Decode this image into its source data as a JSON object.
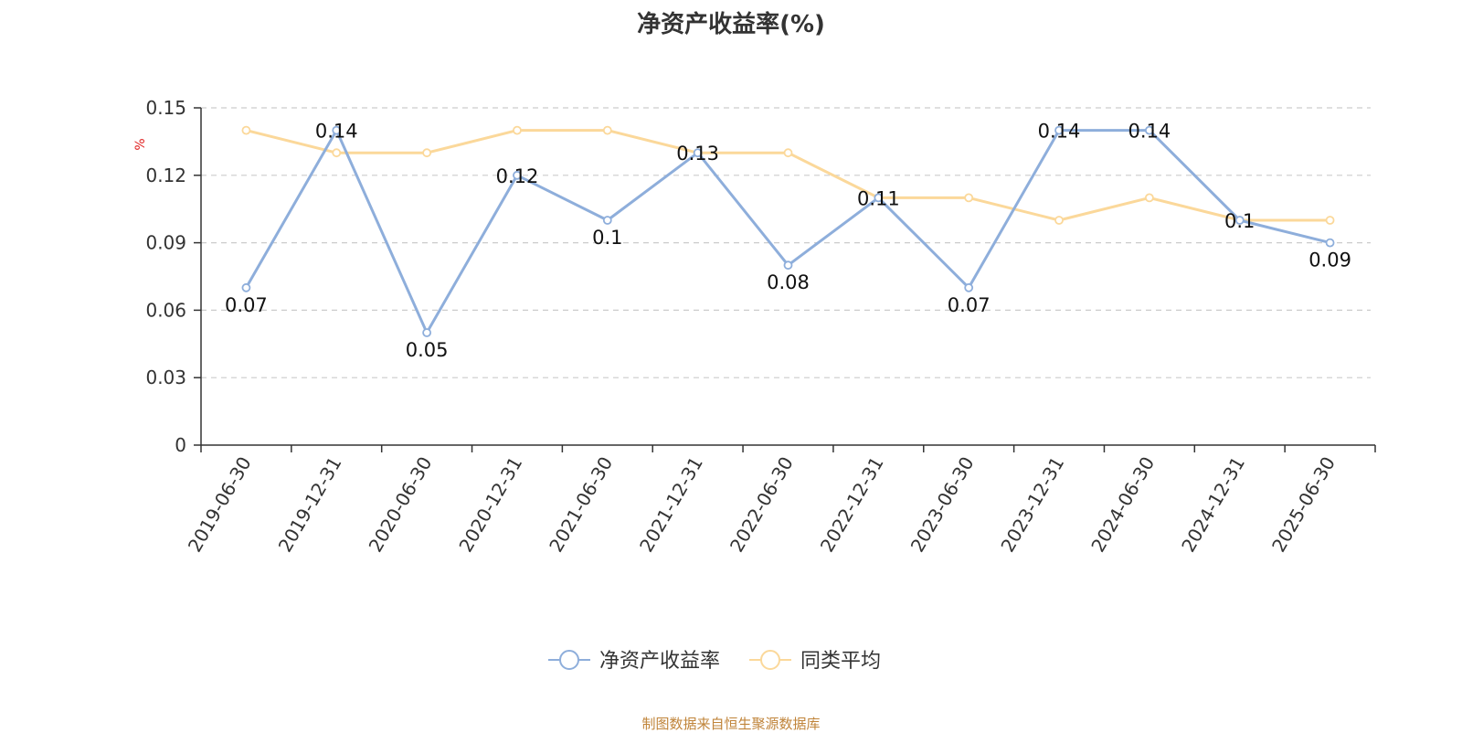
{
  "title": "净资产收益率(%)",
  "source": "制图数据来自恒生聚源数据库",
  "colors": {
    "series0": "#8eaedb",
    "series1": "#fbd89a",
    "grid": "#cccccc",
    "axis": "#333333"
  },
  "chart_data": {
    "type": "line",
    "title": "净资产收益率(%)",
    "ylabel": "%",
    "ylim": [
      0,
      0.15
    ],
    "yticks": [
      0,
      0.03,
      0.06,
      0.09,
      0.12,
      0.15
    ],
    "ytick_labels": [
      "0",
      "0.03",
      "0.06",
      "0.09",
      "0.12",
      "0.15"
    ],
    "grid": true,
    "legend_position": "bottom-center",
    "x": [
      "2019-06-30",
      "2019-12-31",
      "2020-06-30",
      "2020-12-31",
      "2021-06-30",
      "2021-12-31",
      "2022-06-30",
      "2022-12-31",
      "2023-06-30",
      "2023-12-31",
      "2024-06-30",
      "2024-12-31",
      "2025-06-30"
    ],
    "series": [
      {
        "name": "净资产收益率",
        "values": [
          0.07,
          0.14,
          0.05,
          0.12,
          0.1,
          0.13,
          0.08,
          0.11,
          0.07,
          0.14,
          0.14,
          0.1,
          0.09
        ],
        "labels": [
          "0.07",
          "0.14",
          "0.05",
          "0.12",
          "0.1",
          "0.13",
          "0.08",
          "0.11",
          "0.07",
          "0.14",
          "0.14",
          "0.1",
          "0.09"
        ]
      },
      {
        "name": "同类平均",
        "values": [
          0.14,
          0.13,
          0.13,
          0.14,
          0.14,
          0.13,
          0.13,
          0.11,
          0.11,
          0.1,
          0.11,
          0.1,
          0.1
        ]
      }
    ]
  }
}
